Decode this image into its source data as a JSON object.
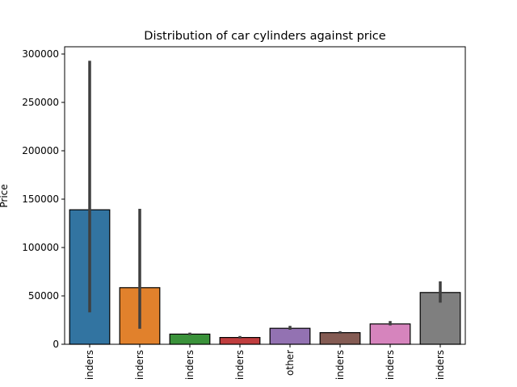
{
  "chart_data": {
    "type": "bar",
    "title": "Distribution of car cylinders against price",
    "xlabel": "",
    "ylabel": "Price",
    "ylim": [
      0,
      300000
    ],
    "yticks": [
      0,
      50000,
      100000,
      150000,
      200000,
      250000,
      300000
    ],
    "categories": [
      "inders",
      "inders",
      "inders",
      "inders",
      "other",
      "inders",
      "inders",
      "inders"
    ],
    "values": [
      139000,
      58500,
      10500,
      7000,
      16500,
      12000,
      21000,
      53500
    ],
    "error_low": [
      33000,
      16000,
      9500,
      6000,
      15000,
      11000,
      19500,
      43000
    ],
    "error_high": [
      293000,
      140000,
      12000,
      8500,
      19000,
      13500,
      24000,
      65000
    ],
    "colors": [
      "#3274a1",
      "#e1812c",
      "#3a923a",
      "#c03d3e",
      "#9372b2",
      "#845b53",
      "#d684bd",
      "#7f7f7f"
    ],
    "grid": false
  }
}
